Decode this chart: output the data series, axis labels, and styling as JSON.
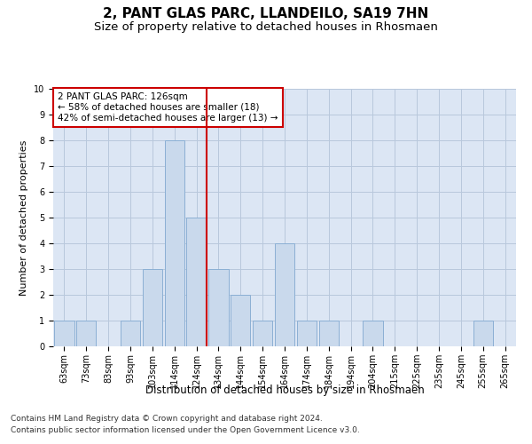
{
  "title": "2, PANT GLAS PARC, LLANDEILO, SA19 7HN",
  "subtitle": "Size of property relative to detached houses in Rhosmaen",
  "xlabel": "Distribution of detached houses by size in Rhosmaen",
  "ylabel": "Number of detached properties",
  "categories": [
    "63sqm",
    "73sqm",
    "83sqm",
    "93sqm",
    "103sqm",
    "114sqm",
    "124sqm",
    "134sqm",
    "144sqm",
    "154sqm",
    "164sqm",
    "174sqm",
    "184sqm",
    "194sqm",
    "204sqm",
    "215sqm",
    "225sqm",
    "235sqm",
    "245sqm",
    "255sqm",
    "265sqm"
  ],
  "values": [
    1,
    1,
    0,
    1,
    3,
    8,
    5,
    3,
    2,
    1,
    4,
    1,
    1,
    0,
    1,
    0,
    0,
    0,
    0,
    1,
    0
  ],
  "bar_color": "#c9d9ec",
  "bar_edgecolor": "#8bafd4",
  "highlight_index": 6,
  "highlight_color": "#cc0000",
  "ylim": [
    0,
    10
  ],
  "yticks": [
    0,
    1,
    2,
    3,
    4,
    5,
    6,
    7,
    8,
    9,
    10
  ],
  "grid_color": "#b8c8dc",
  "background_color": "#dce6f4",
  "annotation_title": "2 PANT GLAS PARC: 126sqm",
  "annotation_line1": "← 58% of detached houses are smaller (18)",
  "annotation_line2": "42% of semi-detached houses are larger (13) →",
  "annotation_box_color": "#cc0000",
  "footnote1": "Contains HM Land Registry data © Crown copyright and database right 2024.",
  "footnote2": "Contains public sector information licensed under the Open Government Licence v3.0.",
  "title_fontsize": 11,
  "subtitle_fontsize": 9.5,
  "xlabel_fontsize": 8.5,
  "ylabel_fontsize": 8,
  "tick_fontsize": 7,
  "annotation_fontsize": 7.5,
  "footnote_fontsize": 6.5
}
